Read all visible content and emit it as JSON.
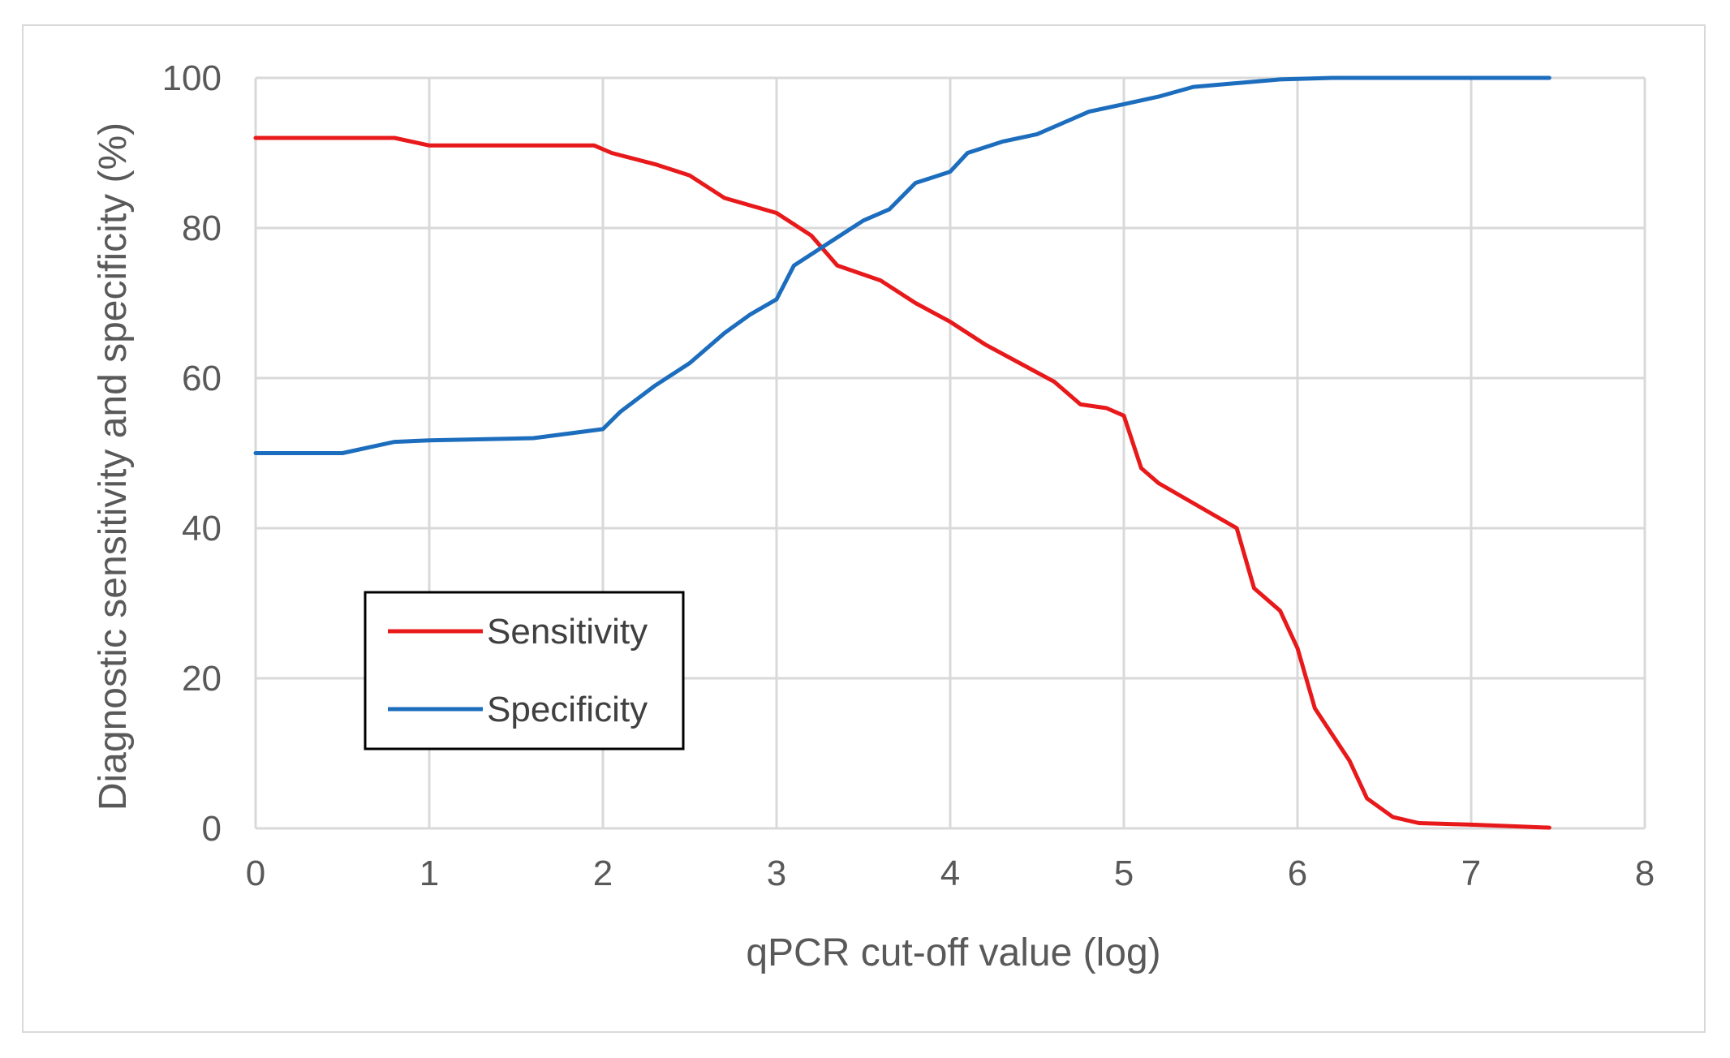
{
  "chart_data": {
    "type": "line",
    "title": "",
    "xlabel": "qPCR cut-off value (log)",
    "ylabel": "Diagnostic sensitivity and specificity (%)",
    "xlim": [
      0,
      8
    ],
    "ylim": [
      0,
      100
    ],
    "x_ticks": [
      "0",
      "1",
      "2",
      "3",
      "4",
      "5",
      "6",
      "7",
      "8"
    ],
    "y_ticks": [
      "0",
      "20",
      "40",
      "60",
      "80",
      "100"
    ],
    "grid": true,
    "legend_position": "lower-left",
    "series": [
      {
        "name": "Sensitivity",
        "color": "#e8191b",
        "points": [
          [
            0,
            92
          ],
          [
            0.8,
            92
          ],
          [
            1.0,
            91
          ],
          [
            1.5,
            91
          ],
          [
            1.95,
            91
          ],
          [
            2.05,
            90
          ],
          [
            2.3,
            88.5
          ],
          [
            2.5,
            87
          ],
          [
            2.7,
            84
          ],
          [
            3.0,
            82
          ],
          [
            3.2,
            79
          ],
          [
            3.35,
            75
          ],
          [
            3.6,
            73
          ],
          [
            3.8,
            70
          ],
          [
            4.0,
            67.5
          ],
          [
            4.2,
            64.5
          ],
          [
            4.4,
            62
          ],
          [
            4.6,
            59.5
          ],
          [
            4.75,
            56.5
          ],
          [
            4.9,
            56
          ],
          [
            5.0,
            55
          ],
          [
            5.1,
            48
          ],
          [
            5.2,
            46
          ],
          [
            5.35,
            44
          ],
          [
            5.5,
            42
          ],
          [
            5.65,
            40
          ],
          [
            5.75,
            32
          ],
          [
            5.9,
            29
          ],
          [
            6.0,
            24
          ],
          [
            6.1,
            16
          ],
          [
            6.3,
            9
          ],
          [
            6.4,
            4
          ],
          [
            6.55,
            1.5
          ],
          [
            6.7,
            0.7
          ],
          [
            7.0,
            0.5
          ],
          [
            7.45,
            0.1
          ]
        ]
      },
      {
        "name": "Specificity",
        "color": "#1c6dbd",
        "points": [
          [
            0,
            50
          ],
          [
            0.5,
            50
          ],
          [
            0.8,
            51.5
          ],
          [
            1.0,
            51.7
          ],
          [
            1.6,
            52
          ],
          [
            2.0,
            53.2
          ],
          [
            2.1,
            55.5
          ],
          [
            2.3,
            59
          ],
          [
            2.5,
            62
          ],
          [
            2.7,
            66
          ],
          [
            2.85,
            68.5
          ],
          [
            3.0,
            70.5
          ],
          [
            3.1,
            75
          ],
          [
            3.3,
            78
          ],
          [
            3.5,
            81
          ],
          [
            3.65,
            82.5
          ],
          [
            3.8,
            86
          ],
          [
            4.0,
            87.5
          ],
          [
            4.1,
            90
          ],
          [
            4.3,
            91.5
          ],
          [
            4.5,
            92.5
          ],
          [
            4.65,
            94
          ],
          [
            4.8,
            95.5
          ],
          [
            5.0,
            96.5
          ],
          [
            5.2,
            97.5
          ],
          [
            5.4,
            98.8
          ],
          [
            5.6,
            99.2
          ],
          [
            5.9,
            99.8
          ],
          [
            6.2,
            100
          ],
          [
            7.45,
            100
          ]
        ]
      }
    ]
  }
}
